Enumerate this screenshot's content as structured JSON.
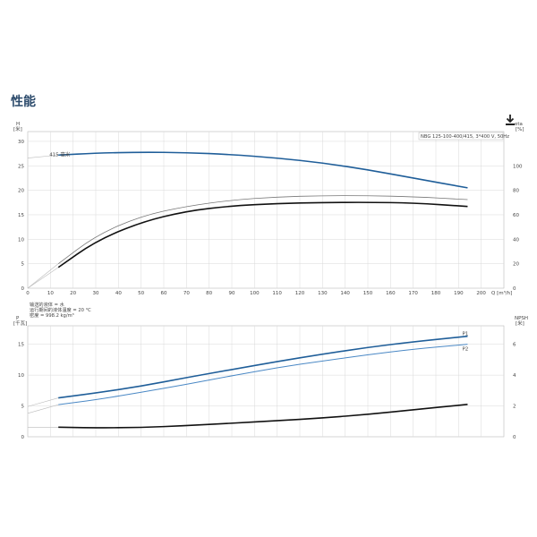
{
  "section_title": "性能",
  "download_icon": "download-icon",
  "colors": {
    "blue": "#1f5e99",
    "light_blue": "#4a88c5",
    "black": "#111111",
    "grid": "#d9d9d9",
    "gray": "#777777"
  },
  "chart_data": [
    {
      "type": "line",
      "pump_label": "NBG 125-100-400/415, 3*400 V, 50Hz",
      "left_axis": {
        "label": "H",
        "unit": "[米]",
        "ticks": [
          0,
          5,
          10,
          15,
          20,
          25,
          30
        ],
        "range": [
          0,
          32
        ]
      },
      "right_axis": {
        "label": "eta",
        "unit": "[%]",
        "ticks": [
          0,
          20,
          40,
          60,
          80,
          100
        ],
        "range": [
          0,
          128
        ]
      },
      "x_axis": {
        "label": "Q [m³/h]",
        "ticks": [
          0,
          10,
          20,
          30,
          40,
          50,
          60,
          70,
          80,
          90,
          100,
          110,
          120,
          130,
          140,
          150,
          160,
          170,
          180,
          190,
          200
        ],
        "range": [
          0,
          210
        ]
      },
      "series": [
        {
          "name": "415 毫米",
          "axis": "left",
          "color": "blue",
          "x": [
            13.5,
            30,
            50,
            70,
            90,
            110,
            130,
            150,
            170,
            194
          ],
          "y": [
            27.2,
            27.6,
            27.8,
            27.7,
            27.3,
            26.6,
            25.6,
            24.2,
            22.5,
            20.5
          ]
        },
        {
          "name": "",
          "axis": "right",
          "color": "gray",
          "x": [
            13.5,
            30,
            50,
            70,
            90,
            110,
            130,
            150,
            170,
            194
          ],
          "y": [
            20,
            43,
            59,
            67,
            72,
            74.6,
            75.6,
            75.6,
            74.8,
            72.4
          ]
        },
        {
          "name": "",
          "axis": "right",
          "color": "black",
          "x": [
            13.5,
            30,
            50,
            70,
            90,
            110,
            130,
            150,
            170,
            194
          ],
          "y": [
            17,
            38.5,
            54,
            63,
            67.3,
            69.2,
            70,
            70.2,
            69.7,
            66.8
          ]
        }
      ]
    },
    {
      "type": "line",
      "left_axis": {
        "label": "P",
        "unit": "[千瓦]",
        "ticks": [
          0,
          5,
          10,
          15
        ],
        "range": [
          0,
          18
        ]
      },
      "right_axis": {
        "label": "NPSH",
        "unit": "[米]",
        "ticks": [
          0,
          2,
          4,
          6
        ],
        "range": [
          0,
          7.2
        ]
      },
      "x_axis": {
        "range": [
          0,
          210
        ]
      },
      "notes": [
        "输送的液体 = 水",
        "运行期间的液体温度 = 20 °C",
        "密度 = 998.2 kg/m³"
      ],
      "series": [
        {
          "name": "P1",
          "axis": "left",
          "color": "blue",
          "x": [
            13.5,
            30,
            50,
            70,
            90,
            110,
            130,
            150,
            170,
            194
          ],
          "y": [
            6.3,
            7.1,
            8.2,
            9.6,
            10.9,
            12.2,
            13.4,
            14.5,
            15.4,
            16.3
          ]
        },
        {
          "name": "P2",
          "axis": "left",
          "color": "light_blue",
          "x": [
            13.5,
            30,
            50,
            70,
            90,
            110,
            130,
            150,
            170,
            194
          ],
          "y": [
            5.2,
            6.0,
            7.2,
            8.5,
            9.9,
            11.2,
            12.3,
            13.3,
            14.2,
            15.0
          ]
        },
        {
          "name": "",
          "axis": "right",
          "color": "black",
          "x": [
            13.5,
            30,
            50,
            70,
            90,
            110,
            130,
            150,
            170,
            194
          ],
          "y": [
            0.62,
            0.58,
            0.6,
            0.72,
            0.88,
            1.04,
            1.22,
            1.45,
            1.75,
            2.1
          ]
        }
      ]
    }
  ]
}
